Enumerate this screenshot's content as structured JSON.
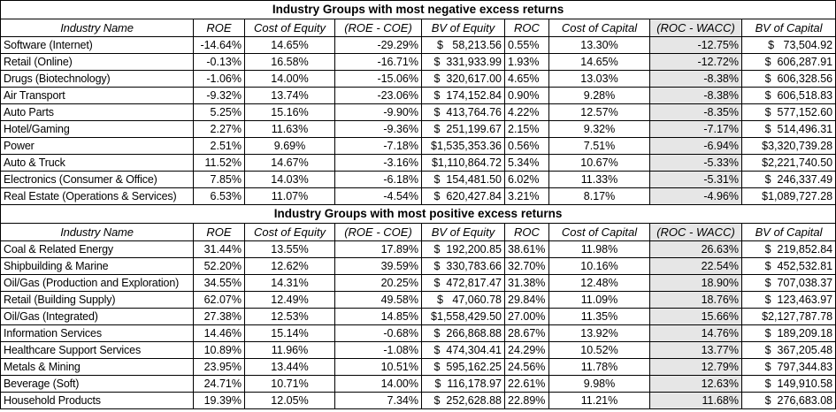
{
  "sections": [
    {
      "title": "Industry Groups with most negative excess returns",
      "header": [
        "Industry Name",
        "ROE",
        "Cost of Equity",
        "(ROE - COE)",
        "BV of Equity",
        "ROC",
        "Cost of Capital",
        "(ROC - WACC)",
        "BV of Capital"
      ],
      "rows": [
        [
          "Software (Internet)",
          "-14.64%",
          "14.65%",
          "-29.29%",
          "$   58,213.56",
          "0.55%",
          "13.30%",
          "-12.75%",
          "$   73,504.92"
        ],
        [
          "Retail (Online)",
          "-0.13%",
          "16.58%",
          "-16.71%",
          "$  331,933.99",
          "1.93%",
          "14.65%",
          "-12.72%",
          "$  606,287.91"
        ],
        [
          "Drugs (Biotechnology)",
          "-1.06%",
          "14.00%",
          "-15.06%",
          "$  320,617.00",
          "4.65%",
          "13.03%",
          "-8.38%",
          "$  606,328.56"
        ],
        [
          "Air Transport",
          "-9.32%",
          "13.74%",
          "-23.06%",
          "$  174,152.84",
          "0.90%",
          "9.28%",
          "-8.38%",
          "$  606,518.83"
        ],
        [
          "Auto Parts",
          "5.25%",
          "15.16%",
          "-9.90%",
          "$  413,764.76",
          "4.22%",
          "12.57%",
          "-8.35%",
          "$  577,152.60"
        ],
        [
          "Hotel/Gaming",
          "2.27%",
          "11.63%",
          "-9.36%",
          "$  251,199.67",
          "2.15%",
          "9.32%",
          "-7.17%",
          "$  514,496.31"
        ],
        [
          "Power",
          "2.51%",
          "9.69%",
          "-7.18%",
          "$1,535,353.36",
          "0.56%",
          "7.51%",
          "-6.94%",
          "$3,320,739.28"
        ],
        [
          "Auto & Truck",
          "11.52%",
          "14.67%",
          "-3.16%",
          "$1,110,864.72",
          "5.34%",
          "10.67%",
          "-5.33%",
          "$2,221,740.50"
        ],
        [
          "Electronics (Consumer & Office)",
          "7.85%",
          "14.03%",
          "-6.18%",
          "$  154,481.50",
          "6.02%",
          "11.33%",
          "-5.31%",
          "$  246,337.49"
        ],
        [
          "Real Estate (Operations & Services)",
          "6.53%",
          "11.07%",
          "-4.54%",
          "$  620,427.84",
          "3.21%",
          "8.17%",
          "-4.96%",
          "$1,089,727.28"
        ]
      ]
    },
    {
      "title": "Industry Groups with most positive excess returns",
      "header": [
        "Industry Name",
        "ROE",
        "Cost of Equity",
        "(ROE - COE)",
        "BV of Equity",
        "ROC",
        "Cost of Capital",
        "(ROC - WACC)",
        "BV of Capital"
      ],
      "rows": [
        [
          "Coal & Related Energy",
          "31.44%",
          "13.55%",
          "17.89%",
          "$  192,200.85",
          "38.61%",
          "11.98%",
          "26.63%",
          "$  219,852.84"
        ],
        [
          "Shipbuilding & Marine",
          "52.20%",
          "12.62%",
          "39.59%",
          "$  330,783.66",
          "32.70%",
          "10.16%",
          "22.54%",
          "$  452,532.81"
        ],
        [
          "Oil/Gas (Production and Exploration)",
          "34.55%",
          "14.31%",
          "20.25%",
          "$  472,817.47",
          "31.38%",
          "12.48%",
          "18.90%",
          "$  707,038.37"
        ],
        [
          "Retail (Building Supply)",
          "62.07%",
          "12.49%",
          "49.58%",
          "$   47,060.78",
          "29.84%",
          "11.09%",
          "18.76%",
          "$  123,463.97"
        ],
        [
          "Oil/Gas (Integrated)",
          "27.38%",
          "12.53%",
          "14.85%",
          "$1,558,429.50",
          "27.00%",
          "11.35%",
          "15.66%",
          "$2,127,787.78"
        ],
        [
          "Information Services",
          "14.46%",
          "15.14%",
          "-0.68%",
          "$  266,868.88",
          "28.67%",
          "13.92%",
          "14.76%",
          "$  189,209.18"
        ],
        [
          "Healthcare Support Services",
          "10.89%",
          "11.96%",
          "-1.08%",
          "$  474,304.41",
          "24.29%",
          "10.52%",
          "13.77%",
          "$  367,205.48"
        ],
        [
          "Metals & Mining",
          "23.95%",
          "13.44%",
          "10.51%",
          "$  595,162.25",
          "24.56%",
          "11.78%",
          "12.79%",
          "$  797,344.83"
        ],
        [
          "Beverage (Soft)",
          "24.71%",
          "10.71%",
          "14.00%",
          "$  116,178.97",
          "22.61%",
          "9.98%",
          "12.63%",
          "$  149,910.58"
        ],
        [
          "Household Products",
          "19.39%",
          "12.05%",
          "7.34%",
          "$  252,628.88",
          "22.89%",
          "11.21%",
          "11.68%",
          "$  276,683.08"
        ]
      ]
    }
  ]
}
